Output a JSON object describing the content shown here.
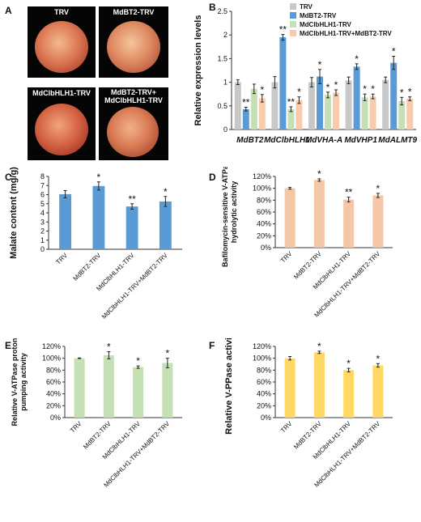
{
  "panel_labels": {
    "A": "A",
    "B": "B",
    "C": "C",
    "D": "D",
    "E": "E",
    "F": "F"
  },
  "panel_a": {
    "photos": [
      {
        "caption": "TRV"
      },
      {
        "caption": "MdBT2-TRV"
      },
      {
        "caption": "MdClbHLH1-TRV"
      },
      {
        "caption": "MdBT2-TRV+\nMdClbHLH1-TRV"
      }
    ]
  },
  "colors": {
    "grey": "#c8c8c8",
    "blue": "#5b9bd5",
    "green": "#c5e0b4",
    "orange": "#f8cbad",
    "yellow": "#ffd966",
    "peach": "#f4c7a8"
  },
  "chart_data": [
    {
      "id": "B",
      "type": "bar",
      "title": "",
      "ylabel": "Relative expression levels",
      "xlabel": "",
      "ylim": [
        0,
        2.5
      ],
      "yticks": [
        "0",
        "0.5",
        "1",
        "1.5",
        "2",
        "2.5"
      ],
      "categories": [
        "MdBT2",
        "MdClbHLH1",
        "MdVHA-A",
        "MdVHP1",
        "MdALMT9"
      ],
      "legend_position": "top-right",
      "series": [
        {
          "name": "TRV",
          "color": "#c8c8c8",
          "values": [
            1.0,
            1.0,
            1.0,
            1.04,
            1.05
          ],
          "errors": [
            0.05,
            0.12,
            0.1,
            0.07,
            0.06
          ],
          "sig": [
            "",
            "",
            "",
            "",
            ""
          ]
        },
        {
          "name": "MdBT2-TRV",
          "color": "#5b9bd5",
          "values": [
            0.43,
            1.95,
            1.12,
            1.33,
            1.41
          ],
          "errors": [
            0.04,
            0.06,
            0.15,
            0.06,
            0.14
          ],
          "sig": [
            "**",
            "**",
            "*",
            "*",
            "*"
          ]
        },
        {
          "name": "MdClbHLH1-TRV",
          "color": "#c5e0b4",
          "values": [
            0.86,
            0.43,
            0.73,
            0.68,
            0.6
          ],
          "errors": [
            0.1,
            0.05,
            0.06,
            0.07,
            0.08
          ],
          "sig": [
            "",
            "**",
            "*",
            "*",
            "*"
          ]
        },
        {
          "name": "MdClbHLH1-TRV+MdBT2-TRV",
          "color": "#f8cbad",
          "values": [
            0.66,
            0.62,
            0.78,
            0.7,
            0.65
          ],
          "errors": [
            0.08,
            0.07,
            0.06,
            0.05,
            0.04
          ],
          "sig": [
            "*",
            "*",
            "*",
            "*",
            "*"
          ]
        }
      ]
    },
    {
      "id": "C",
      "type": "bar",
      "title": "",
      "ylabel": "Malate content (mg/g)",
      "xlabel": "",
      "ylim": [
        0,
        8
      ],
      "yticks": [
        "0",
        "1",
        "2",
        "3",
        "4",
        "5",
        "6",
        "7",
        "8"
      ],
      "categories": [
        "TRV",
        "MdBT2-TRV",
        "MdClbHLH1-TRV",
        "MdClbHLH1-TRV+MdBT2-TRV"
      ],
      "series": [
        {
          "name": "",
          "color": "#5b9bd5",
          "values": [
            6.05,
            6.95,
            4.7,
            5.25
          ],
          "errors": [
            0.4,
            0.45,
            0.3,
            0.55
          ],
          "sig": [
            "",
            "*",
            "**",
            "*"
          ]
        }
      ]
    },
    {
      "id": "D",
      "type": "bar",
      "title": "",
      "ylabel": "Bafilomycin-sensitive V-ATPase\nhydrolytic activity",
      "xlabel": "",
      "ylim": [
        0,
        120
      ],
      "yticks": [
        "0%",
        "20%",
        "40%",
        "60%",
        "80%",
        "100%",
        "120%"
      ],
      "categories": [
        "TRV",
        "MdBT2-TRV",
        "MdClbHLH1-TRV",
        "MdClbHLH1-TRV+MdBT2-TRV"
      ],
      "series": [
        {
          "name": "",
          "color": "#f4c7a8",
          "values": [
            100,
            114,
            81,
            88
          ],
          "errors": [
            1.5,
            2,
            4,
            3.5
          ],
          "sig": [
            "",
            "*",
            "**",
            "*"
          ]
        }
      ]
    },
    {
      "id": "E",
      "type": "bar",
      "title": "",
      "ylabel": "Relative V-ATPase proton\npumping activity",
      "xlabel": "",
      "ylim": [
        0,
        120
      ],
      "yticks": [
        "0%",
        "20%",
        "40%",
        "60%",
        "80%",
        "100%",
        "120%"
      ],
      "categories": [
        "TRV",
        "MdBT2-TRV",
        "MdClbHLH1-TRV",
        "MdClbHLH1-TRV+MdBT2-TRV"
      ],
      "series": [
        {
          "name": "",
          "color": "#c5e0b4",
          "values": [
            100,
            105,
            85,
            92
          ],
          "errors": [
            0.5,
            6,
            2,
            8
          ],
          "sig": [
            "",
            "*",
            "*",
            "*"
          ]
        }
      ]
    },
    {
      "id": "F",
      "type": "bar",
      "title": "",
      "ylabel": "Relative V-PPase activity",
      "xlabel": "",
      "ylim": [
        0,
        120
      ],
      "yticks": [
        "0%",
        "20%",
        "40%",
        "60%",
        "80%",
        "100%",
        "120%"
      ],
      "categories": [
        "TRV",
        "MdBT2-TRV",
        "MdClbHLH1-TRV",
        "MdClbHLH1-TRV+MdBT2-TRV"
      ],
      "series": [
        {
          "name": "",
          "color": "#ffd966",
          "values": [
            100,
            110,
            80,
            88
          ],
          "errors": [
            3,
            2,
            3,
            3
          ],
          "sig": [
            "",
            "*",
            "*",
            "*"
          ]
        }
      ]
    }
  ]
}
